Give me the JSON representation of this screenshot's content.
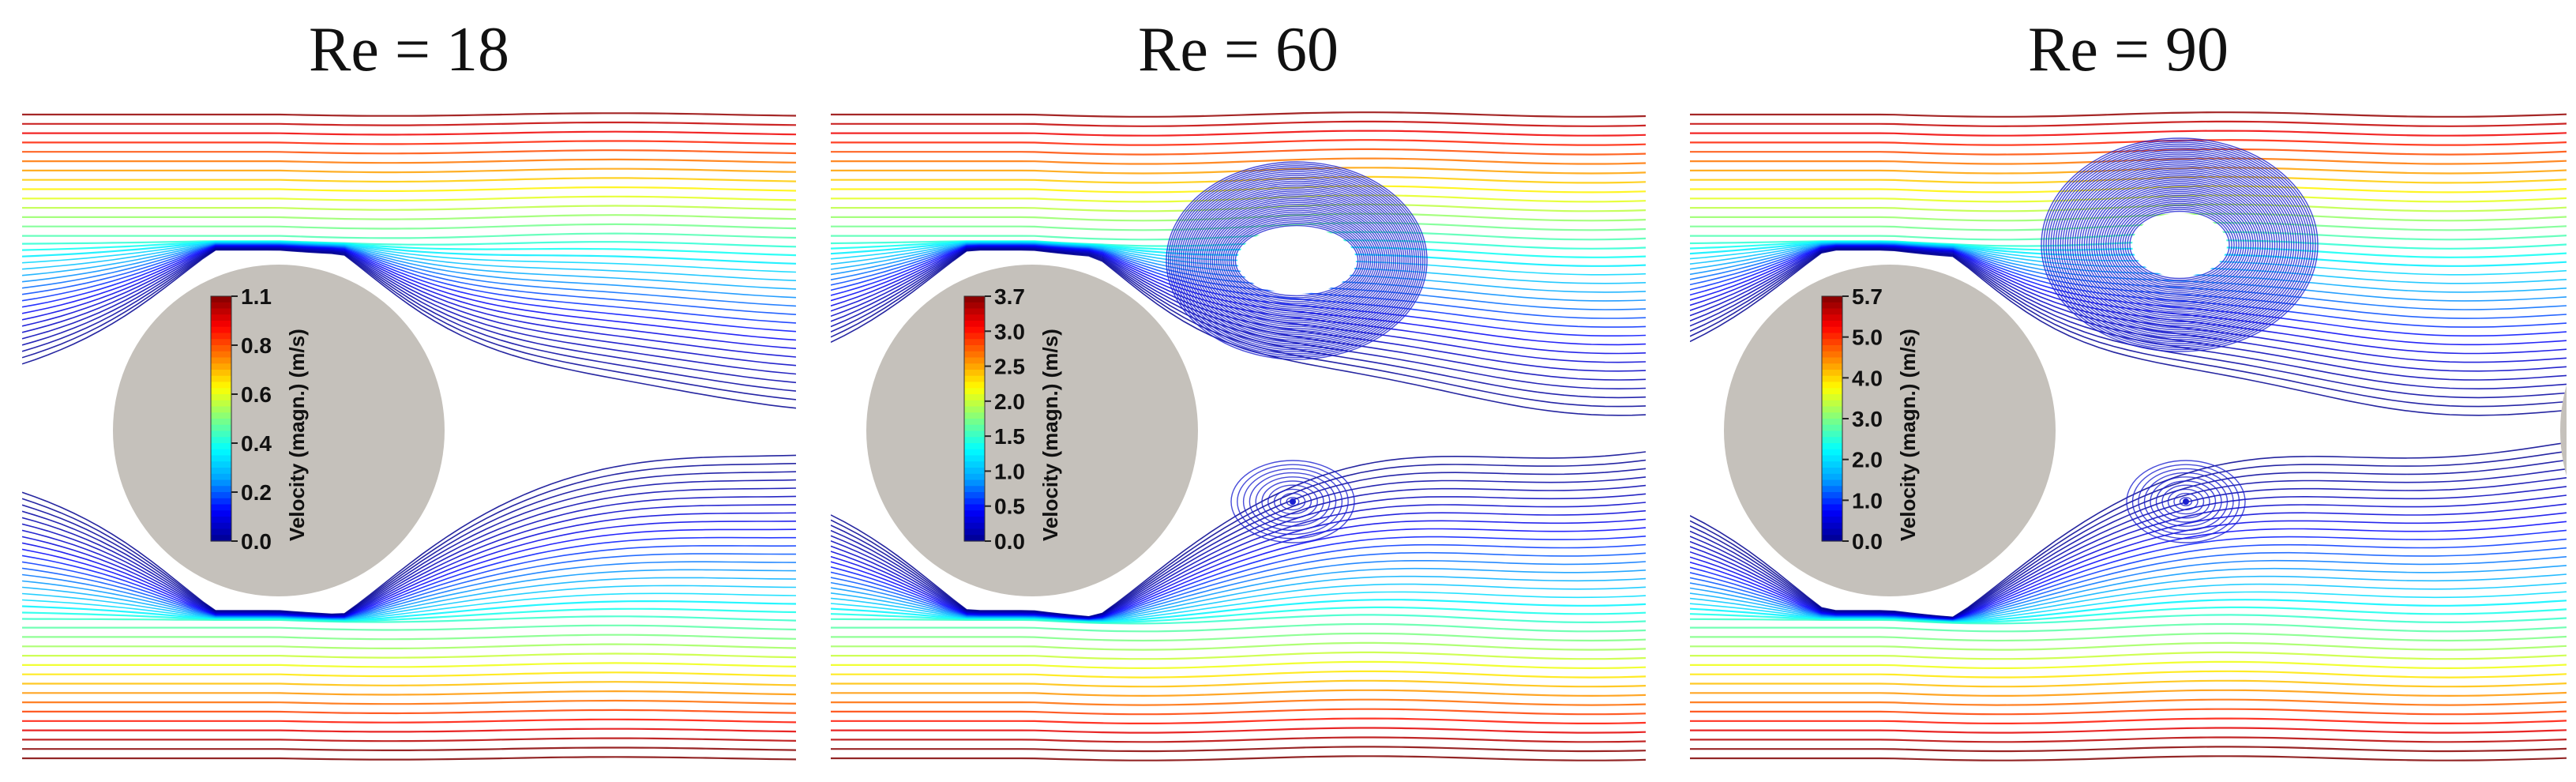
{
  "panels": [
    {
      "title": "Re = 18",
      "colorbar": {
        "title": "Velocity (magn.) (m/s)",
        "ticks": [
          "1.1",
          "0.8",
          "0.6",
          "0.4",
          "0.2",
          "0.0"
        ]
      }
    },
    {
      "title": "Re = 60",
      "colorbar": {
        "title": "Velocity (magn.) (m/s)",
        "ticks": [
          "3.7",
          "3.0",
          "2.5",
          "2.0",
          "1.5",
          "1.0",
          "0.5",
          "0.0"
        ]
      }
    },
    {
      "title": "Re = 90",
      "colorbar": {
        "title": "Velocity (magn.) (m/s)",
        "ticks": [
          "5.7",
          "5.0",
          "4.0",
          "3.0",
          "2.0",
          "1.0",
          "0.0"
        ]
      }
    }
  ],
  "colors": {
    "cylinder": "#c5c1bb",
    "vortex": "#1a1fd0",
    "colormap": [
      "#00008f",
      "#0000ff",
      "#00a0ff",
      "#00ffff",
      "#80ff80",
      "#ffff00",
      "#ff8000",
      "#ff0000",
      "#800000"
    ]
  }
}
